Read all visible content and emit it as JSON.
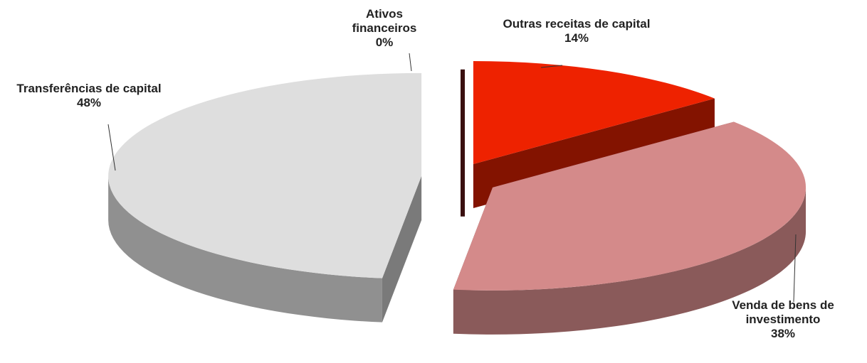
{
  "chart_data": {
    "type": "pie",
    "categories": [
      "Ativos financeiros",
      "Outras receitas de capital",
      "Venda de bens de investimento",
      "Transferências de capital"
    ],
    "values": [
      0,
      14,
      38,
      48
    ],
    "value_labels": [
      "0%",
      "14%",
      "38%",
      "48%"
    ],
    "colors": [
      "#3a1010",
      "#ee2200",
      "#d48a8a",
      "#dedede"
    ]
  }
}
